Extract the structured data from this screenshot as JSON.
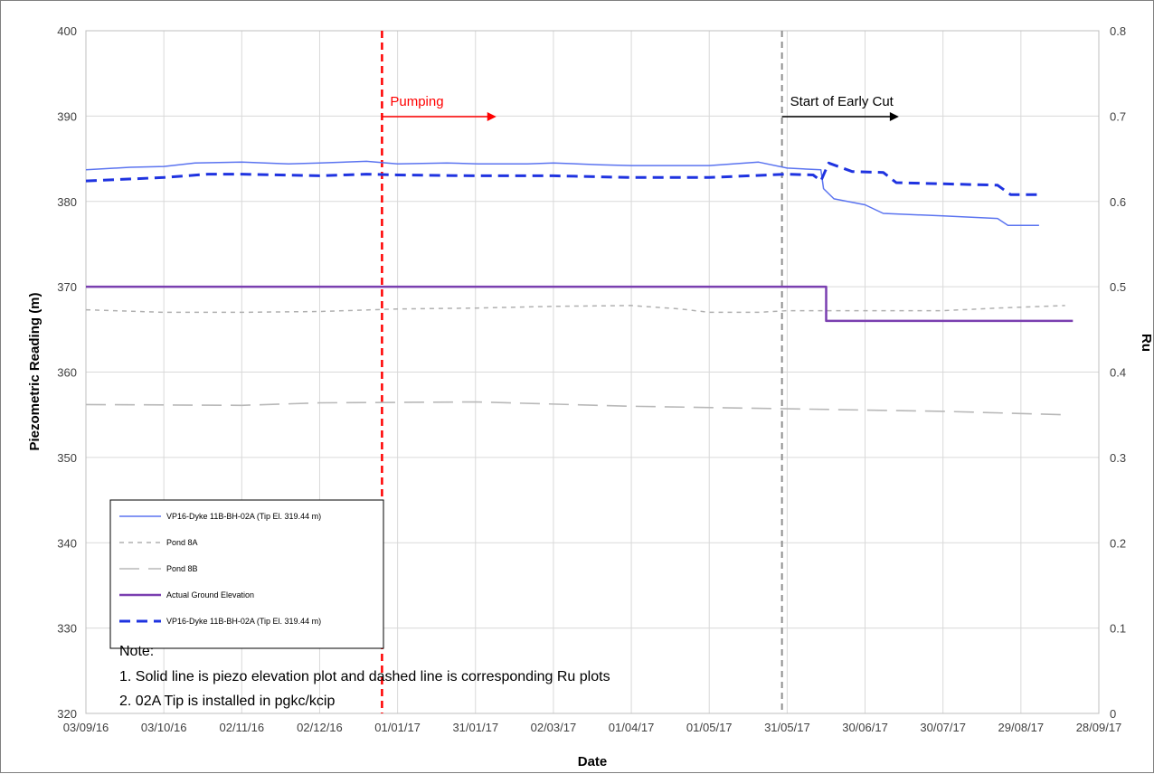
{
  "chart_data": {
    "type": "line",
    "xlabel": "Date",
    "ylabel": "Piezometric Reading (m)",
    "y2label": "Ru",
    "xlim": [
      "2016-09-03",
      "2017-09-28"
    ],
    "ylim": [
      320,
      400
    ],
    "y2lim": [
      0,
      0.8
    ],
    "grid": true,
    "legend_position": "bottom-left",
    "x_ticks": [
      "03/09/16",
      "03/10/16",
      "02/11/16",
      "02/12/16",
      "01/01/17",
      "31/01/17",
      "02/03/17",
      "01/04/17",
      "01/05/17",
      "31/05/17",
      "30/06/17",
      "30/07/17",
      "29/08/17",
      "28/09/17"
    ],
    "y_ticks": [
      "320",
      "330",
      "340",
      "350",
      "360",
      "370",
      "380",
      "390",
      "400"
    ],
    "y2_ticks": [
      "0",
      "0.1",
      "0.2",
      "0.3",
      "0.4",
      "0.5",
      "0.6",
      "0.7",
      "0.8"
    ],
    "series": [
      {
        "name": "VP16-Dyke 11B-BH-02A (Tip El. 319.44 m)",
        "axis": "left",
        "color": "#5b74f0",
        "style": "solid",
        "points": [
          [
            "2016-09-03",
            383.7
          ],
          [
            "2016-09-20",
            384.0
          ],
          [
            "2016-10-03",
            384.1
          ],
          [
            "2016-10-15",
            384.5
          ],
          [
            "2016-11-02",
            384.6
          ],
          [
            "2016-11-20",
            384.4
          ],
          [
            "2016-12-02",
            384.5
          ],
          [
            "2016-12-20",
            384.7
          ],
          [
            "2017-01-01",
            384.4
          ],
          [
            "2017-01-20",
            384.5
          ],
          [
            "2017-02-01",
            384.4
          ],
          [
            "2017-02-20",
            384.4
          ],
          [
            "2017-03-02",
            384.5
          ],
          [
            "2017-03-20",
            384.3
          ],
          [
            "2017-04-01",
            384.2
          ],
          [
            "2017-04-20",
            384.2
          ],
          [
            "2017-05-01",
            384.2
          ],
          [
            "2017-05-20",
            384.6
          ],
          [
            "2017-05-31",
            383.9
          ],
          [
            "2017-06-13",
            383.7
          ],
          [
            "2017-06-14",
            381.5
          ],
          [
            "2017-06-18",
            380.3
          ],
          [
            "2017-06-30",
            379.6
          ],
          [
            "2017-07-07",
            378.6
          ],
          [
            "2017-07-30",
            378.3
          ],
          [
            "2017-08-20",
            378.0
          ],
          [
            "2017-08-24",
            377.2
          ],
          [
            "2017-09-05",
            377.2
          ]
        ]
      },
      {
        "name": "Pond 8A",
        "axis": "left",
        "color": "#b0b0b0",
        "style": "short-dash",
        "points": [
          [
            "2016-09-03",
            367.3
          ],
          [
            "2016-10-03",
            367.0
          ],
          [
            "2016-11-02",
            367.0
          ],
          [
            "2016-12-02",
            367.1
          ],
          [
            "2017-01-01",
            367.4
          ],
          [
            "2017-01-31",
            367.5
          ],
          [
            "2017-03-02",
            367.7
          ],
          [
            "2017-04-01",
            367.8
          ],
          [
            "2017-04-20",
            367.4
          ],
          [
            "2017-05-01",
            367.0
          ],
          [
            "2017-05-20",
            367.0
          ],
          [
            "2017-05-31",
            367.2
          ],
          [
            "2017-06-30",
            367.2
          ],
          [
            "2017-07-30",
            367.2
          ],
          [
            "2017-08-20",
            367.5
          ],
          [
            "2017-09-15",
            367.8
          ]
        ]
      },
      {
        "name": "Pond 8B",
        "axis": "left",
        "color": "#b8b8b8",
        "style": "long-dash",
        "points": [
          [
            "2016-09-03",
            356.2
          ],
          [
            "2016-11-02",
            356.1
          ],
          [
            "2016-12-02",
            356.4
          ],
          [
            "2017-01-31",
            356.5
          ],
          [
            "2017-04-01",
            356.0
          ],
          [
            "2017-05-31",
            355.7
          ],
          [
            "2017-07-30",
            355.4
          ],
          [
            "2017-09-15",
            355.0
          ]
        ]
      },
      {
        "name": "Actual Ground Elevation",
        "axis": "left",
        "color": "#7a3fb0",
        "style": "solid",
        "points": [
          [
            "2016-09-03",
            370.0
          ],
          [
            "2017-06-15",
            370.0
          ],
          [
            "2017-06-15",
            366.0
          ],
          [
            "2017-09-18",
            366.0
          ]
        ]
      },
      {
        "name": "VP16-Dyke 11B-BH-02A (Tip El. 319.44 m)",
        "axis": "right",
        "color": "#1f33e0",
        "style": "dash",
        "points": [
          [
            "2016-09-03",
            0.624
          ],
          [
            "2016-10-03",
            0.628
          ],
          [
            "2016-10-20",
            0.632
          ],
          [
            "2016-11-02",
            0.632
          ],
          [
            "2016-12-02",
            0.63
          ],
          [
            "2016-12-20",
            0.632
          ],
          [
            "2017-01-01",
            0.631
          ],
          [
            "2017-01-31",
            0.63
          ],
          [
            "2017-03-02",
            0.63
          ],
          [
            "2017-04-01",
            0.628
          ],
          [
            "2017-05-01",
            0.628
          ],
          [
            "2017-05-31",
            0.632
          ],
          [
            "2017-06-10",
            0.631
          ],
          [
            "2017-06-13",
            0.624
          ],
          [
            "2017-06-16",
            0.645
          ],
          [
            "2017-06-25",
            0.635
          ],
          [
            "2017-07-07",
            0.634
          ],
          [
            "2017-07-12",
            0.622
          ],
          [
            "2017-08-20",
            0.619
          ],
          [
            "2017-08-25",
            0.608
          ],
          [
            "2017-09-05",
            0.608
          ]
        ]
      }
    ],
    "annotations": [
      {
        "label": "Pumping",
        "date": "2016-12-26",
        "color": "#ff0000",
        "arrow_to": "2017-02-08"
      },
      {
        "label": "Start of  Early Cut",
        "date": "2017-05-29",
        "color": "#8f8f8f",
        "arrow_to": "2017-07-13"
      }
    ],
    "notes": [
      "Note:",
      "1. Solid  line is piezo elevation plot and dashed line is corresponding   Ru plots",
      "2. 02A Tip is installed  in pgkc/kcip"
    ]
  }
}
